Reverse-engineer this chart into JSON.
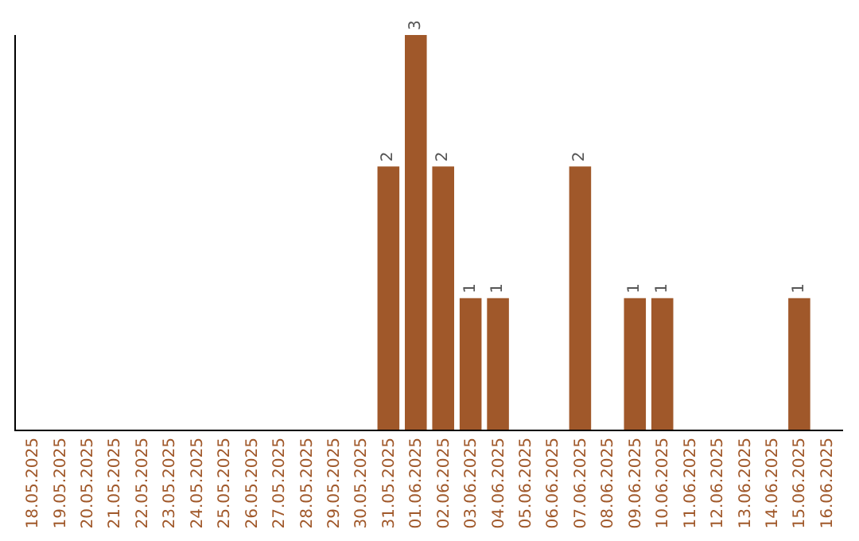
{
  "chart_data": {
    "type": "bar",
    "categories": [
      "18.05.2025",
      "19.05.2025",
      "20.05.2025",
      "21.05.2025",
      "22.05.2025",
      "23.05.2025",
      "24.05.2025",
      "25.05.2025",
      "26.05.2025",
      "27.05.2025",
      "28.05.2025",
      "29.05.2025",
      "30.05.2025",
      "31.05.2025",
      "01.06.2025",
      "02.06.2025",
      "03.06.2025",
      "04.06.2025",
      "05.06.2025",
      "06.06.2025",
      "07.06.2025",
      "08.06.2025",
      "09.06.2025",
      "10.06.2025",
      "11.06.2025",
      "12.06.2025",
      "13.06.2025",
      "14.06.2025",
      "15.06.2025",
      "16.06.2025"
    ],
    "values": [
      null,
      null,
      null,
      null,
      null,
      null,
      null,
      null,
      null,
      null,
      null,
      null,
      null,
      2,
      3,
      2,
      1,
      1,
      null,
      null,
      2,
      null,
      1,
      1,
      null,
      null,
      null,
      null,
      1,
      null
    ],
    "color": "#a0582a",
    "ylim": [
      0,
      3
    ],
    "data_labels": true,
    "grid": false,
    "tick_labels": "x"
  }
}
